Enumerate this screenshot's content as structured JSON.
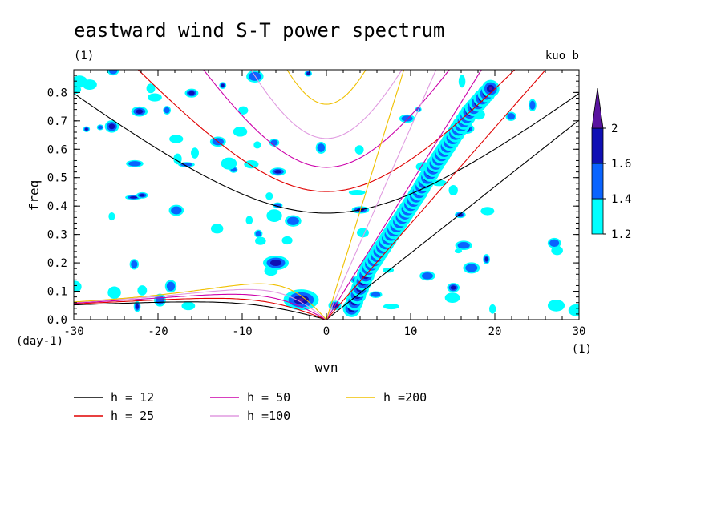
{
  "figure": {
    "title": "eastward wind S-T power spectrum",
    "subtitle_left": "(1)",
    "subtitle_right": "kuo_b",
    "x_unit_label": "(1)",
    "y_unit_label": "(day-1)"
  },
  "chart_data": {
    "type": "heatmap",
    "title": "eastward wind S-T power spectrum",
    "xlabel": "wvn",
    "ylabel": "freq",
    "xlim": [
      -30,
      30
    ],
    "ylim": [
      0,
      0.88
    ],
    "x_ticks": [
      -30,
      -20,
      -10,
      0,
      10,
      20,
      30
    ],
    "x_tick_labels": [
      "-30",
      "-20",
      "-10",
      "0",
      "10",
      "20",
      "30"
    ],
    "y_ticks": [
      0,
      0.1,
      0.2,
      0.3,
      0.4,
      0.5,
      0.6,
      0.7,
      0.8
    ],
    "y_tick_labels": [
      "0.0",
      "0.1",
      "0.2",
      "0.3",
      "0.4",
      "0.5",
      "0.6",
      "0.7",
      "0.8"
    ],
    "colorbar": {
      "levels": [
        1.2,
        1.4,
        1.6,
        2
      ],
      "labels": [
        "1.2",
        "1.4",
        "1.6",
        "2"
      ],
      "colors": [
        "#00ffff",
        "#0a64ff",
        "#1010b4",
        "#5a14a0"
      ]
    },
    "dispersion_curves": [
      {
        "name": "h = 12",
        "h": 12,
        "color": "#000000"
      },
      {
        "name": "h = 25",
        "h": 25,
        "color": "#e00000"
      },
      {
        "name": "h = 50",
        "h": 50,
        "color": "#cc00aa"
      },
      {
        "name": "h =100",
        "h": 100,
        "color": "#e09ae0"
      },
      {
        "name": "h =200",
        "h": 200,
        "color": "#f0c000"
      }
    ],
    "kelvin_band": [
      {
        "wvn": 3,
        "freq": 0.04
      },
      {
        "wvn": 5,
        "freq": 0.18
      },
      {
        "wvn": 7,
        "freq": 0.27
      },
      {
        "wvn": 9,
        "freq": 0.36
      },
      {
        "wvn": 11,
        "freq": 0.45
      },
      {
        "wvn": 13,
        "freq": 0.55
      },
      {
        "wvn": 15,
        "freq": 0.64
      },
      {
        "wvn": 17,
        "freq": 0.73
      },
      {
        "wvn": 20,
        "freq": 0.83
      }
    ]
  }
}
